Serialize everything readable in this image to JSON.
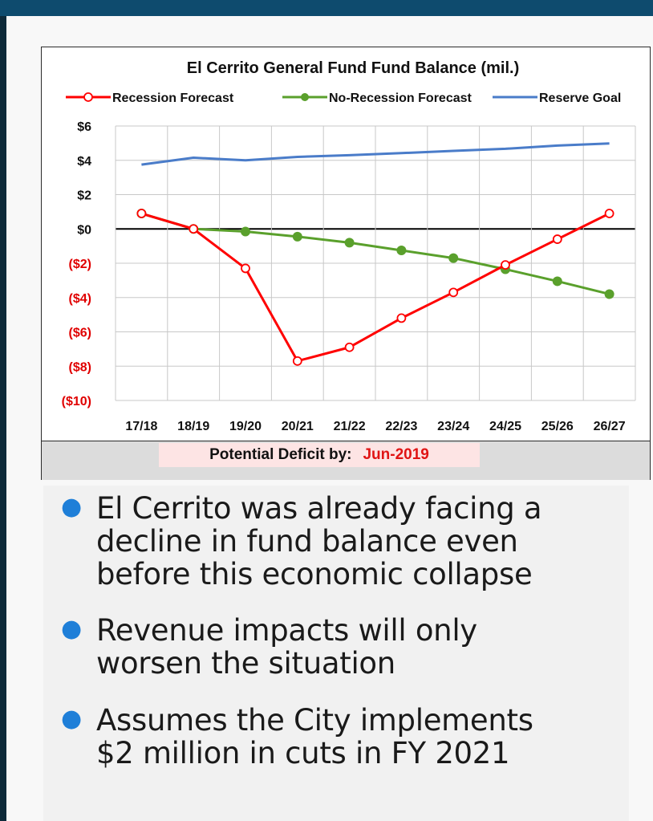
{
  "chart_data": {
    "type": "line",
    "title": "El Cerrito General Fund Fund Balance (mil.)",
    "categories": [
      "17/18",
      "18/19",
      "19/20",
      "20/21",
      "21/22",
      "22/23",
      "23/24",
      "24/25",
      "25/26",
      "26/27"
    ],
    "y_tick_labels": [
      "$6",
      "$4",
      "$2",
      "$0",
      "($2)",
      "($4)",
      "($6)",
      "($8)",
      "($10)"
    ],
    "ylim": [
      -10,
      6
    ],
    "grid": true,
    "legend_position": "top",
    "series": [
      {
        "name": "Recession Forecast",
        "color": "#ff0000",
        "marker": "open-circle",
        "values": [
          0.9,
          0.0,
          -2.3,
          -7.7,
          -6.9,
          -5.2,
          -3.7,
          -2.1,
          -0.6,
          0.9
        ]
      },
      {
        "name": "No-Recession Forecast",
        "color": "#5aa02c",
        "marker": "filled-circle",
        "values": [
          0.9,
          0.0,
          -0.15,
          -0.45,
          -0.8,
          -1.25,
          -1.7,
          -2.35,
          -3.05,
          -3.8
        ]
      },
      {
        "name": "Reserve Goal",
        "color": "#4a7cc9",
        "marker": "none",
        "values": [
          3.75,
          4.15,
          4.0,
          4.2,
          4.3,
          4.42,
          4.55,
          4.67,
          4.86,
          4.98
        ]
      }
    ]
  },
  "footer": {
    "deficit_label": "Potential Deficit by:",
    "deficit_value": "Jun-2019"
  },
  "bullets": [
    {
      "lines": [
        "El Cerrito was already facing a",
        "decline in fund balance even",
        "before this economic collapse"
      ]
    },
    {
      "lines": [
        "Revenue impacts will only",
        "worsen the situation"
      ]
    },
    {
      "lines": [
        "Assumes the City implements",
        "$2 million in cuts in FY 2021"
      ]
    }
  ],
  "colors": {
    "top_bar": "#0e4b6e",
    "bullet_dot": "#1f7fd8",
    "deficit_highlight": "#fde4e4",
    "deficit_value": "#e01414",
    "negative_tick": "#e00000"
  }
}
